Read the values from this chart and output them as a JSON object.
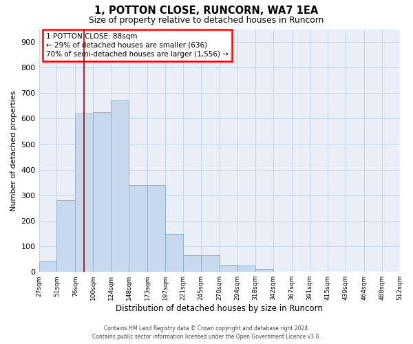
{
  "title1": "1, POTTON CLOSE, RUNCORN, WA7 1EA",
  "title2": "Size of property relative to detached houses in Runcorn",
  "xlabel": "Distribution of detached houses by size in Runcorn",
  "ylabel": "Number of detached properties",
  "bar_color": "#c8d9ee",
  "bar_edge_color": "#7aafd4",
  "grid_color": "#c8d5e5",
  "bg_color": "#eaeff7",
  "annotation_text": "1 POTTON CLOSE: 88sqm\n← 29% of detached houses are smaller (636)\n70% of semi-detached houses are larger (1,556) →",
  "vline_color": "#aa0000",
  "property_sqm": 88,
  "bin_edges": [
    27,
    51,
    76,
    100,
    124,
    148,
    173,
    197,
    221,
    245,
    270,
    294,
    318,
    342,
    367,
    391,
    415,
    439,
    464,
    488,
    512
  ],
  "bin_labels": [
    "27sqm",
    "51sqm",
    "76sqm",
    "100sqm",
    "124sqm",
    "148sqm",
    "173sqm",
    "197sqm",
    "221sqm",
    "245sqm",
    "270sqm",
    "294sqm",
    "318sqm",
    "342sqm",
    "367sqm",
    "391sqm",
    "415sqm",
    "439sqm",
    "464sqm",
    "488sqm",
    "512sqm"
  ],
  "bar_heights": [
    40,
    280,
    620,
    625,
    670,
    340,
    340,
    148,
    65,
    65,
    28,
    25,
    12,
    0,
    0,
    0,
    0,
    0,
    0,
    0
  ],
  "ylim": [
    0,
    950
  ],
  "yticks": [
    0,
    100,
    200,
    300,
    400,
    500,
    600,
    700,
    800,
    900
  ],
  "footnote": "Contains HM Land Registry data © Crown copyright and database right 2024.\nContains public sector information licensed under the Open Government Licence v3.0."
}
